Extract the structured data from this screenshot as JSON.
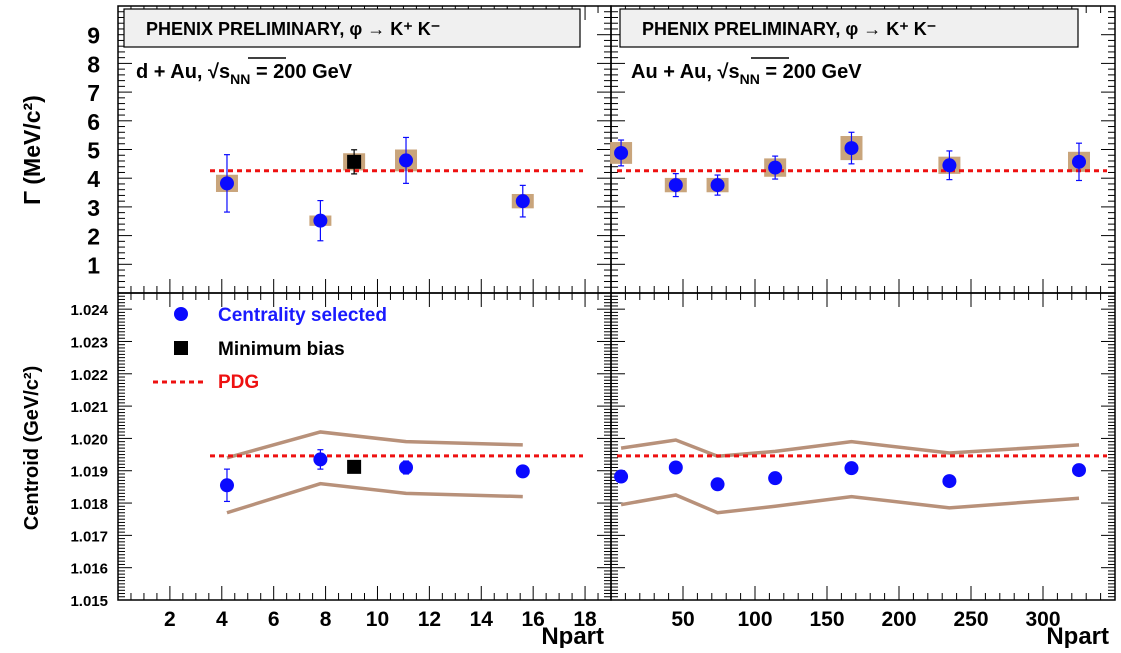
{
  "figure": {
    "banner_left": "PHENIX PRELIMINARY, φ → K⁺ K⁻",
    "banner_right": "PHENIX PRELIMINARY, φ → K⁺ K⁻",
    "system_left_prefix": "d + Au, ",
    "system_right_prefix": "Au + Au, ",
    "sqrt_symbol": "√",
    "s_label": "s",
    "s_subscript": "NN",
    "system_suffix": " = 200 GeV",
    "ylabel_top": "Γ (MeV/c²)",
    "ylabel_bottom": "Centroid (GeV/c²)",
    "xlabel_left": "Npart",
    "xlabel_right": "Npart",
    "legend": {
      "centrality": "Centrality selected",
      "minbias": "Minimum bias",
      "pdg": "PDG"
    },
    "colors": {
      "data_points": "#0a0aff",
      "min_bias": "#000000",
      "pdg_line": "#ee1111",
      "systematics": "#c9a57c",
      "band": "#b8917a",
      "banner_fill": "#f0f0f0",
      "legend_centrality_text": "#1a1aff",
      "legend_pdg_text": "#ee1111"
    }
  },
  "chart_data": [
    {
      "panel": "dAu-width",
      "type": "scatter",
      "title": "PHENIX PRELIMINARY, φ → K⁺ K⁻",
      "system": "d + Au, √sNN = 200 GeV",
      "ylabel": "Γ (MeV/c²)",
      "xlim": [
        0,
        19
      ],
      "ylim": [
        0,
        10
      ],
      "yticks": [
        1,
        2,
        3,
        4,
        5,
        6,
        7,
        8,
        9
      ],
      "pdg": 4.26,
      "series": [
        {
          "name": "Centrality selected",
          "points": [
            {
              "x": 4.2,
              "y": 3.82,
              "err": 1.0,
              "sys": 0.3
            },
            {
              "x": 7.8,
              "y": 2.52,
              "err": 0.7,
              "sys": 0.18
            },
            {
              "x": 11.1,
              "y": 4.62,
              "err": 0.8,
              "sys": 0.38
            },
            {
              "x": 15.6,
              "y": 3.2,
              "err": 0.55,
              "sys": 0.25
            }
          ]
        },
        {
          "name": "Minimum bias",
          "points": [
            {
              "x": 9.1,
              "y": 4.57,
              "err": 0.42,
              "sys": 0.3
            }
          ]
        }
      ]
    },
    {
      "panel": "AuAu-width",
      "type": "scatter",
      "title": "PHENIX PRELIMINARY, φ → K⁺ K⁻",
      "system": "Au + Au, √sNN = 200 GeV",
      "xlim": [
        0,
        350
      ],
      "ylim": [
        0,
        10
      ],
      "pdg": 4.26,
      "series": [
        {
          "name": "Centrality selected",
          "points": [
            {
              "x": 7,
              "y": 4.88,
              "err": 0.45,
              "sys": 0.38
            },
            {
              "x": 45,
              "y": 3.76,
              "err": 0.4,
              "sys": 0.25
            },
            {
              "x": 74,
              "y": 3.76,
              "err": 0.35,
              "sys": 0.25
            },
            {
              "x": 114,
              "y": 4.37,
              "err": 0.4,
              "sys": 0.32
            },
            {
              "x": 167,
              "y": 5.05,
              "err": 0.55,
              "sys": 0.42
            },
            {
              "x": 235,
              "y": 4.45,
              "err": 0.5,
              "sys": 0.3
            },
            {
              "x": 325,
              "y": 4.57,
              "err": 0.65,
              "sys": 0.35
            }
          ]
        }
      ]
    },
    {
      "panel": "dAu-centroid",
      "type": "scatter",
      "ylabel": "Centroid (GeV/c²)",
      "xlabel": "Npart",
      "xlim": [
        0,
        19
      ],
      "ylim": [
        1.015,
        1.0245
      ],
      "xticks": [
        2,
        4,
        6,
        8,
        10,
        12,
        14,
        16,
        18
      ],
      "yticks": [
        1.015,
        1.016,
        1.017,
        1.018,
        1.019,
        1.02,
        1.021,
        1.022,
        1.023,
        1.024
      ],
      "pdg": 1.01946,
      "band_upper": [
        [
          4.2,
          1.0194
        ],
        [
          7.8,
          1.0202
        ],
        [
          11.1,
          1.0199
        ],
        [
          15.6,
          1.0198
        ]
      ],
      "band_lower": [
        [
          4.2,
          1.0177
        ],
        [
          7.8,
          1.0186
        ],
        [
          11.1,
          1.0183
        ],
        [
          15.6,
          1.0182
        ]
      ],
      "series": [
        {
          "name": "Centrality selected",
          "points": [
            {
              "x": 4.2,
              "y": 1.01855,
              "err": 0.0005
            },
            {
              "x": 7.8,
              "y": 1.01935,
              "err": 0.0003
            },
            {
              "x": 11.1,
              "y": 1.0191,
              "err": 0.0002
            },
            {
              "x": 15.6,
              "y": 1.01898,
              "err": 0.00015
            }
          ]
        },
        {
          "name": "Minimum bias",
          "points": [
            {
              "x": 9.1,
              "y": 1.01912,
              "err": 0
            }
          ]
        }
      ]
    },
    {
      "panel": "AuAu-centroid",
      "type": "scatter",
      "xlabel": "Npart",
      "xlim": [
        0,
        350
      ],
      "ylim": [
        1.015,
        1.0245
      ],
      "xticks": [
        50,
        100,
        150,
        200,
        250,
        300
      ],
      "pdg": 1.01946,
      "band_upper": [
        [
          7,
          1.0197
        ],
        [
          45,
          1.01995
        ],
        [
          74,
          1.01945
        ],
        [
          114,
          1.0196
        ],
        [
          167,
          1.0199
        ],
        [
          235,
          1.01955
        ],
        [
          325,
          1.0198
        ]
      ],
      "band_lower": [
        [
          7,
          1.01795
        ],
        [
          45,
          1.01825
        ],
        [
          74,
          1.0177
        ],
        [
          114,
          1.0179
        ],
        [
          167,
          1.0182
        ],
        [
          235,
          1.01785
        ],
        [
          325,
          1.01815
        ]
      ],
      "series": [
        {
          "name": "Centrality selected",
          "points": [
            {
              "x": 7,
              "y": 1.01882,
              "err": 0.0001
            },
            {
              "x": 45,
              "y": 1.0191,
              "err": 0.0001
            },
            {
              "x": 74,
              "y": 1.01858,
              "err": 0.0001
            },
            {
              "x": 114,
              "y": 1.01877,
              "err": 0.0001
            },
            {
              "x": 167,
              "y": 1.01908,
              "err": 0.0001
            },
            {
              "x": 235,
              "y": 1.01868,
              "err": 0.0001
            },
            {
              "x": 325,
              "y": 1.01902,
              "err": 0.00018
            }
          ]
        }
      ]
    }
  ]
}
